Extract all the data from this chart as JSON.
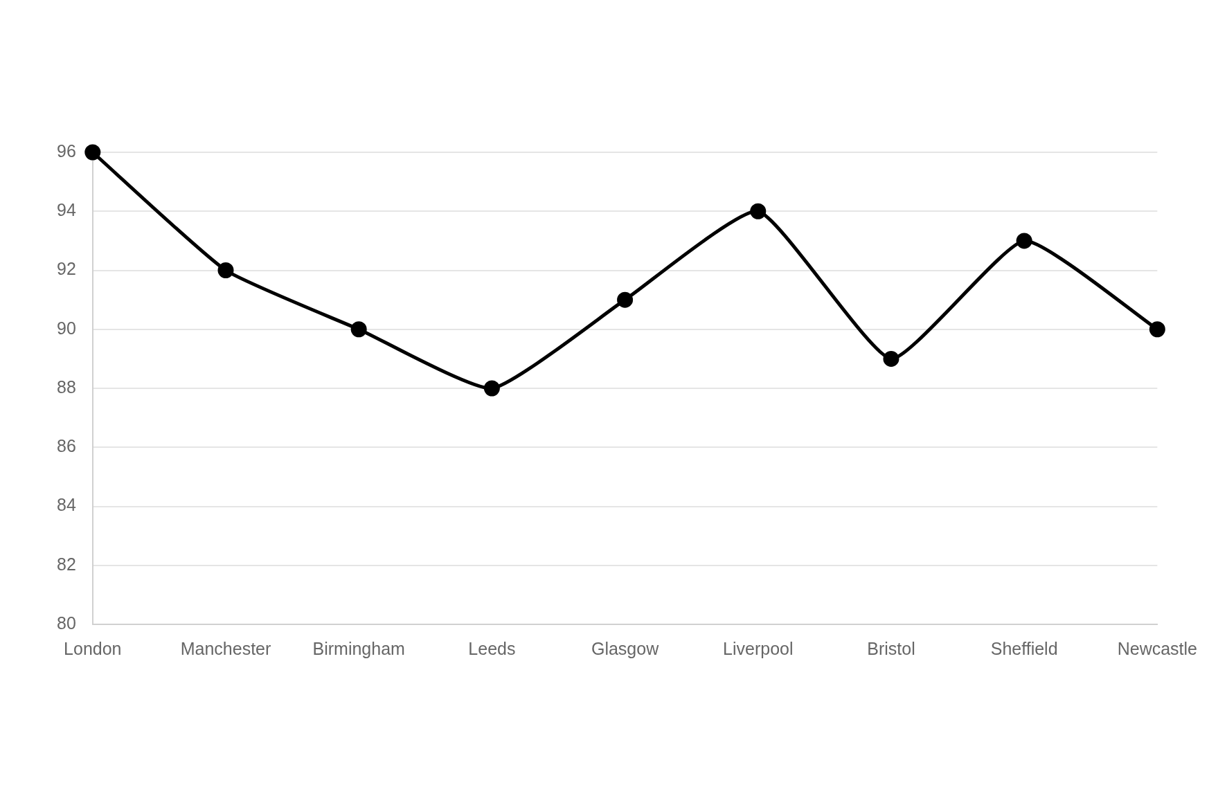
{
  "chart_data": {
    "type": "line",
    "categories": [
      "London",
      "Manchester",
      "Birmingham",
      "Leeds",
      "Glasgow",
      "Liverpool",
      "Bristol",
      "Sheffield",
      "Newcastle"
    ],
    "series": [
      {
        "color": "#000000",
        "values": [
          96,
          92,
          90,
          88,
          91,
          94,
          89,
          93,
          90
        ]
      }
    ],
    "ylim": [
      80,
      96
    ],
    "yticks": [
      80,
      82,
      84,
      86,
      88,
      90,
      92,
      94,
      96
    ],
    "grid": "y",
    "legend": false,
    "marker": "circle",
    "line_style": "solid"
  }
}
